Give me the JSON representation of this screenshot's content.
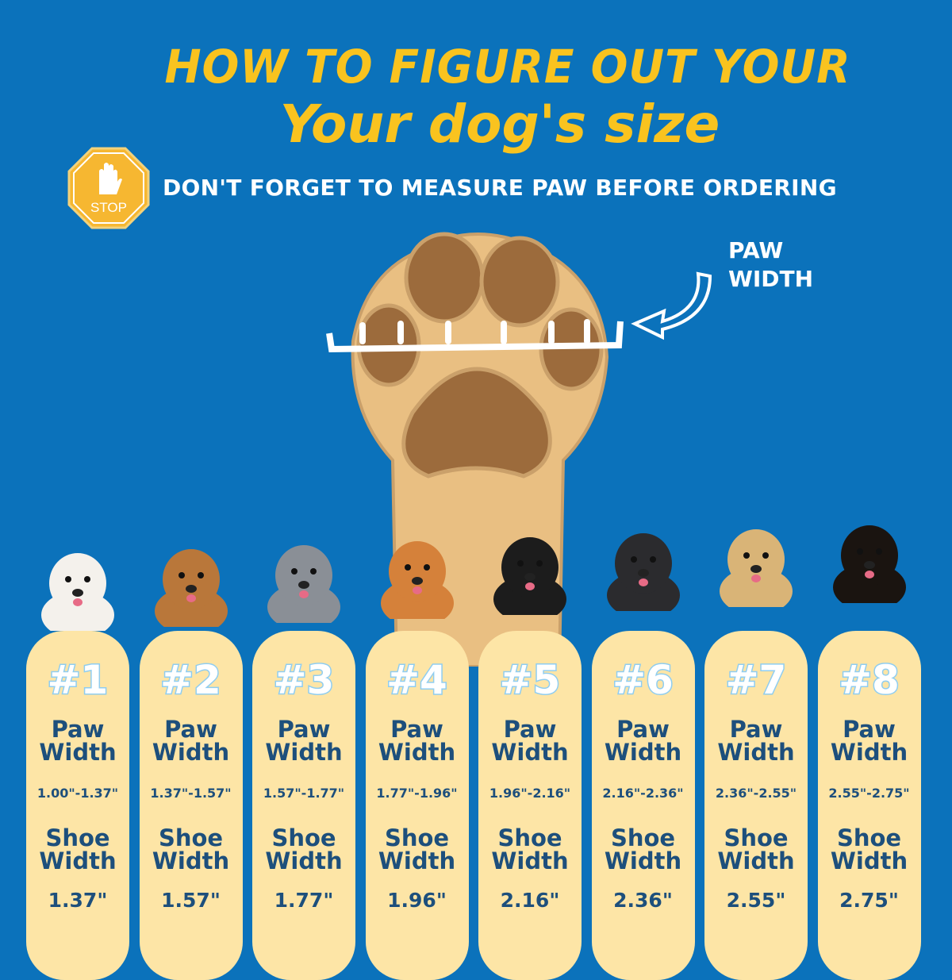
{
  "header": {
    "title_line1": "HOW TO FIGURE OUT YOUR",
    "title_line2": "Your dog's size",
    "stop_sign": "STOP",
    "warning": "DON'T FORGET TO MEASURE PAW BEFORE ORDERING",
    "paw_width_label_1": "PAW",
    "paw_width_label_2": "WIDTH"
  },
  "colors": {
    "background": "#0b72bb",
    "title": "#f9c31f",
    "card": "#fde5a6",
    "card_text": "#1d4f7c"
  },
  "sizes": [
    {
      "number": "#1",
      "paw_label_1": "Paw",
      "paw_label_2": "Width",
      "paw_range": "1.00\"-1.37\"",
      "shoe_label_1": "Shoe",
      "shoe_label_2": "Width",
      "shoe_width": "1.37\"",
      "dog_color": "#f4f1ec"
    },
    {
      "number": "#2",
      "paw_label_1": "Paw",
      "paw_label_2": "Width",
      "paw_range": "1.37\"-1.57\"",
      "shoe_label_1": "Shoe",
      "shoe_label_2": "Width",
      "shoe_width": "1.57\"",
      "dog_color": "#b9773a"
    },
    {
      "number": "#3",
      "paw_label_1": "Paw",
      "paw_label_2": "Width",
      "paw_range": "1.57\"-1.77\"",
      "shoe_label_1": "Shoe",
      "shoe_label_2": "Width",
      "shoe_width": "1.77\"",
      "dog_color": "#8a8f96"
    },
    {
      "number": "#4",
      "paw_label_1": "Paw",
      "paw_label_2": "Width",
      "paw_range": "1.77\"-1.96\"",
      "shoe_label_1": "Shoe",
      "shoe_label_2": "Width",
      "shoe_width": "1.96\"",
      "dog_color": "#d5813a"
    },
    {
      "number": "#5",
      "paw_label_1": "Paw",
      "paw_label_2": "Width",
      "paw_range": "1.96\"-2.16\"",
      "shoe_label_1": "Shoe",
      "shoe_label_2": "Width",
      "shoe_width": "2.16\"",
      "dog_color": "#1c1c1c"
    },
    {
      "number": "#6",
      "paw_label_1": "Paw",
      "paw_label_2": "Width",
      "paw_range": "2.16\"-2.36\"",
      "shoe_label_1": "Shoe",
      "shoe_label_2": "Width",
      "shoe_width": "2.36\"",
      "dog_color": "#2b2b2e"
    },
    {
      "number": "#7",
      "paw_label_1": "Paw",
      "paw_label_2": "Width",
      "paw_range": "2.36\"-2.55\"",
      "shoe_label_1": "Shoe",
      "shoe_label_2": "Width",
      "shoe_width": "2.55\"",
      "dog_color": "#d9b477"
    },
    {
      "number": "#8",
      "paw_label_1": "Paw",
      "paw_label_2": "Width",
      "paw_range": "2.55\"-2.75\"",
      "shoe_label_1": "Shoe",
      "shoe_label_2": "Width",
      "shoe_width": "2.75\"",
      "dog_color": "#1a1410"
    }
  ]
}
